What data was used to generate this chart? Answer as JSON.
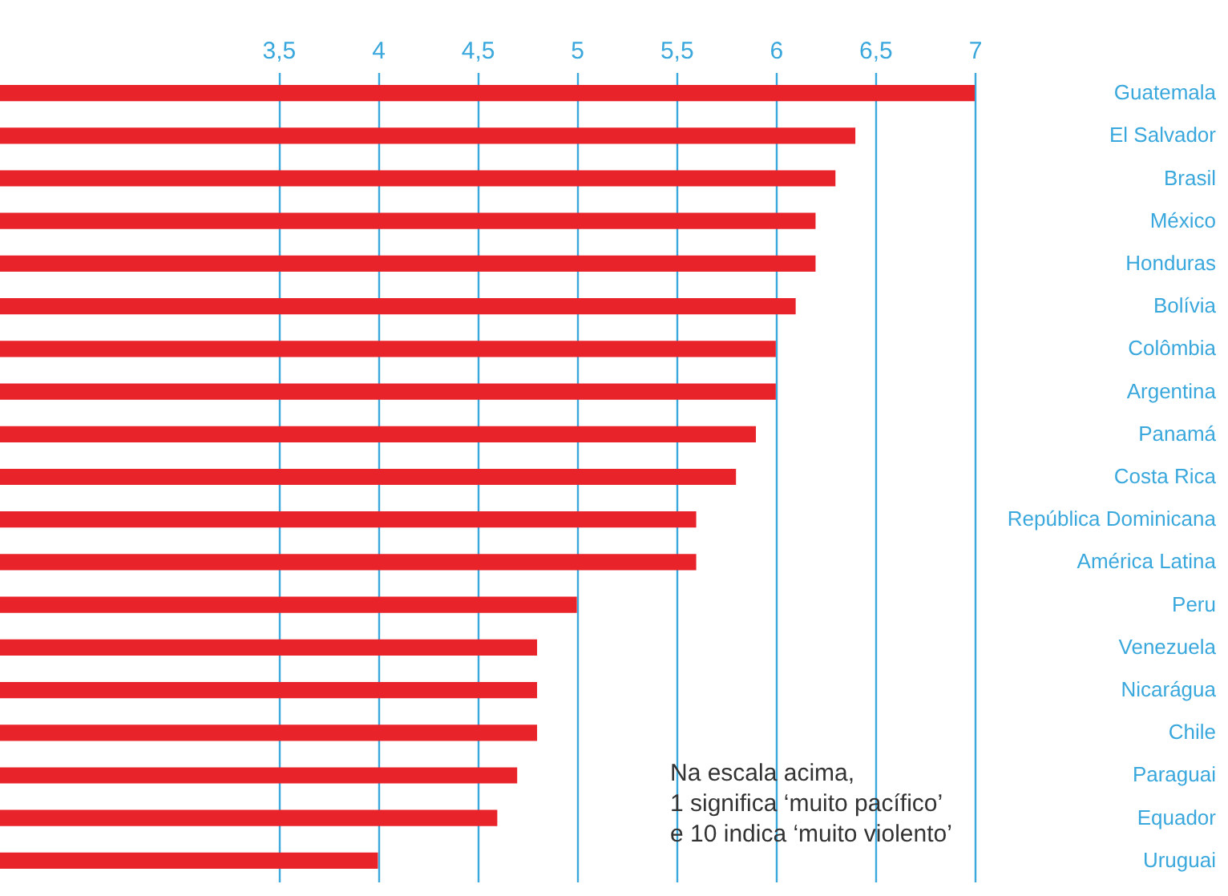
{
  "chart_data": {
    "type": "bar",
    "orientation": "horizontal",
    "categories": [
      "Guatemala",
      "El Salvador",
      "Brasil",
      "México",
      "Honduras",
      "Bolívia",
      "Colômbia",
      "Argentina",
      "Panamá",
      "Costa Rica",
      "República Dominicana",
      "América Latina",
      "Peru",
      "Venezuela",
      "Nicarágua",
      "Chile",
      "Paraguai",
      "Equador",
      "Uruguai"
    ],
    "values": [
      7.0,
      6.4,
      6.3,
      6.2,
      6.2,
      6.1,
      6.0,
      6.0,
      5.9,
      5.8,
      5.6,
      5.6,
      5.0,
      4.8,
      4.8,
      4.8,
      4.7,
      4.6,
      4.0
    ],
    "color": "#e8232a",
    "xlim": [
      2.1,
      7.0
    ],
    "xticks": [
      {
        "value": 3.5,
        "label": "3,5"
      },
      4,
      {
        "value": 4.5,
        "label": "4,5"
      },
      5,
      {
        "value": 5.5,
        "label": "5,5"
      },
      6,
      {
        "value": 6.5,
        "label": "6,5"
      },
      7
    ],
    "grid": "x",
    "annotations": [
      "Na escala acima,\n1 significa ‘muito pacífico’\ne 10 indica ‘muito violento’"
    ]
  }
}
